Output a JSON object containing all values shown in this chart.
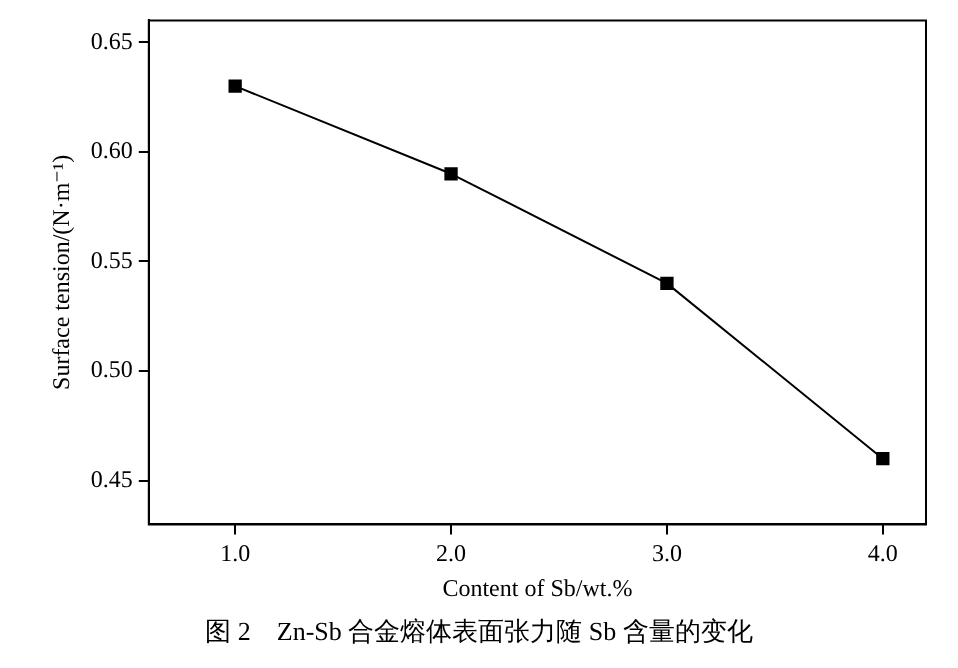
{
  "chart_data": {
    "type": "line",
    "xlabel": "Content of Sb/wt.%",
    "ylabel": "Surface tension/(N·m⁻¹)",
    "x": [
      1,
      2,
      3,
      4
    ],
    "series": [
      {
        "color": "#000000",
        "values": [
          0.63,
          0.59,
          0.54,
          0.46
        ]
      }
    ],
    "xlim": [
      0.6,
      4.2
    ],
    "xticks": [
      {
        "value": 1,
        "label": "1.0"
      },
      {
        "value": 2,
        "label": "2.0"
      },
      {
        "value": 3,
        "label": "3.0"
      },
      {
        "value": 4,
        "label": "4.0"
      }
    ],
    "ylim": [
      0.43,
      0.66
    ],
    "yticks": [
      0.45,
      {
        "value": 0.5,
        "label": "0.50"
      },
      0.55,
      {
        "value": 0.6,
        "label": "0.60"
      },
      0.65
    ],
    "marker": "square",
    "line_style": "solid",
    "grid": false,
    "legend": false,
    "annotations": [
      "图 2　Zn-Sb 合金熔体表面张力随 Sb 含量的变化"
    ]
  }
}
